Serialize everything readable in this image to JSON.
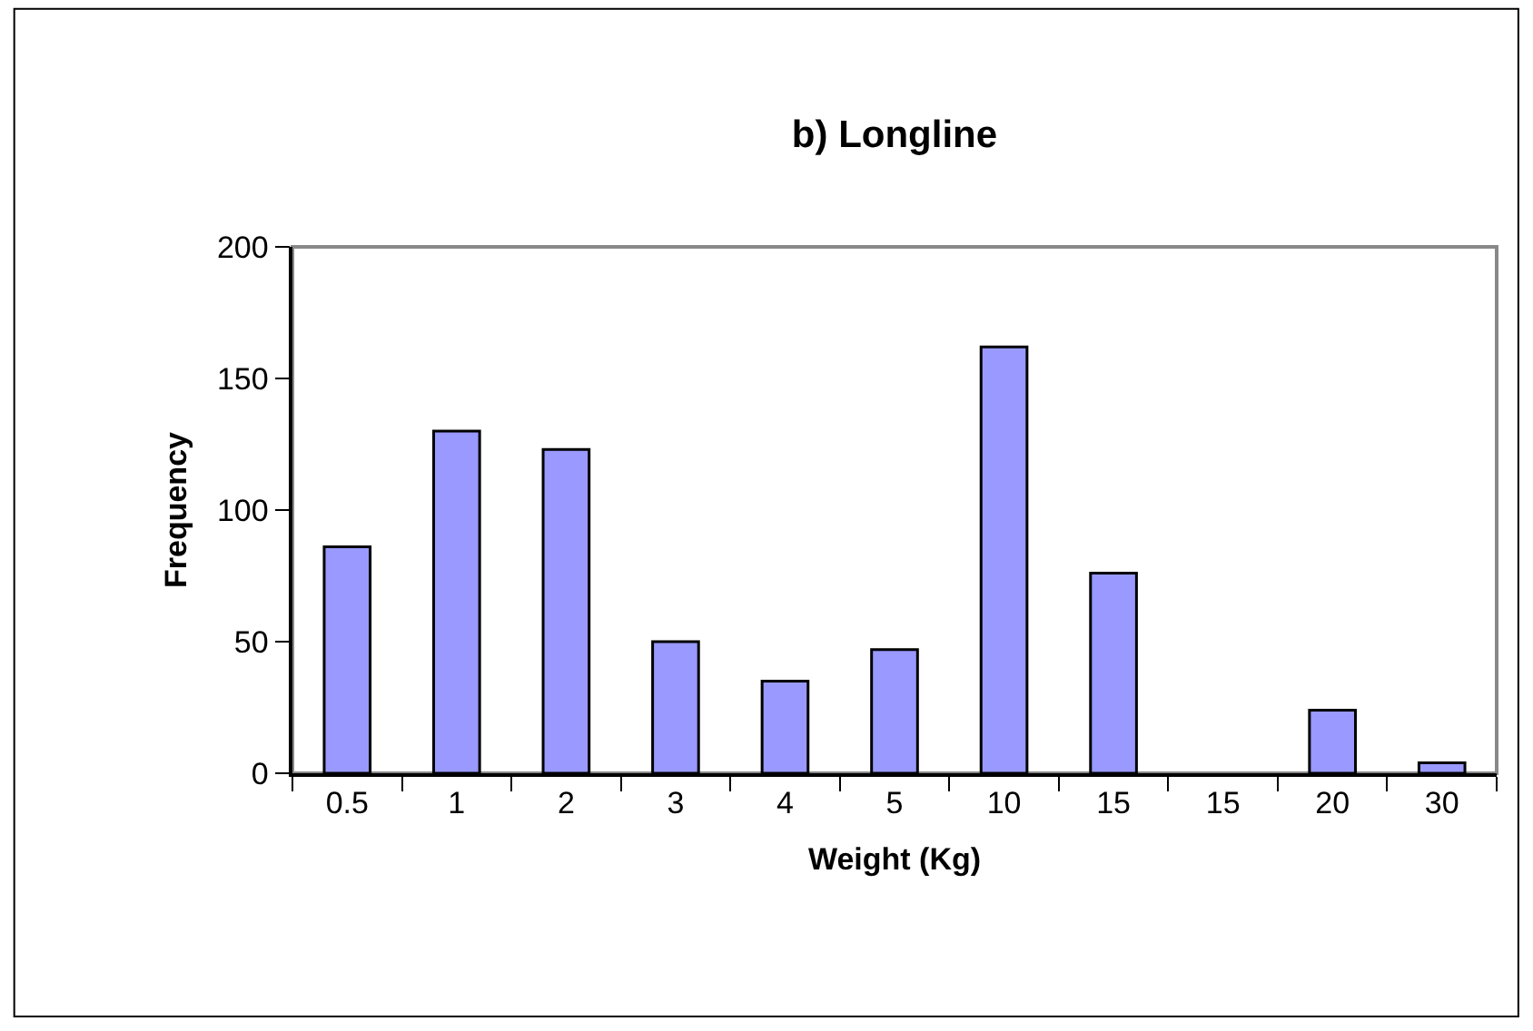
{
  "chart_data": {
    "type": "bar",
    "title": "b) Longline",
    "xlabel": "Weight (Kg)",
    "ylabel": "Frequency",
    "categories": [
      "0.5",
      "1",
      "2",
      "3",
      "4",
      "5",
      "10",
      "15",
      "15",
      "20",
      "30"
    ],
    "values": [
      86,
      130,
      123,
      50,
      35,
      47,
      162,
      76,
      null,
      24,
      4
    ],
    "color": "#9999ff",
    "ylim": [
      0,
      200
    ],
    "yticks": [
      0,
      50,
      100,
      150,
      200
    ],
    "grid": false,
    "legend": false
  }
}
